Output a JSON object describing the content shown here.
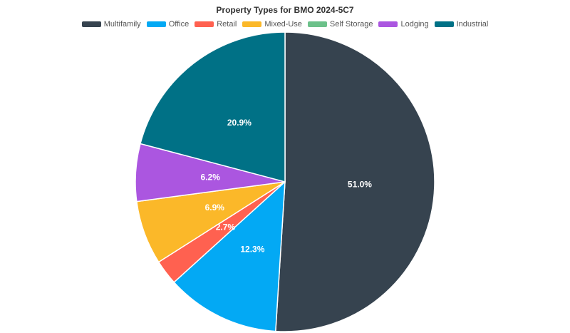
{
  "chart_data": {
    "type": "pie",
    "title": "Property Types for BMO 2024-5C7",
    "legend_position": "top",
    "slices": [
      {
        "name": "Multifamily",
        "value": 51.0,
        "label": "51.0%",
        "color": "#36434f"
      },
      {
        "name": "Office",
        "value": 12.3,
        "label": "12.3%",
        "color": "#03a9f4"
      },
      {
        "name": "Retail",
        "value": 2.7,
        "label": "2.7%",
        "color": "#ff6150"
      },
      {
        "name": "Mixed-Use",
        "value": 6.9,
        "label": "6.9%",
        "color": "#fbb829"
      },
      {
        "name": "Self Storage",
        "value": 0.0,
        "label": "",
        "color": "#6cc18a"
      },
      {
        "name": "Lodging",
        "value": 6.2,
        "label": "6.2%",
        "color": "#ab56e0"
      },
      {
        "name": "Industrial",
        "value": 20.9,
        "label": "20.9%",
        "color": "#007186"
      }
    ]
  }
}
